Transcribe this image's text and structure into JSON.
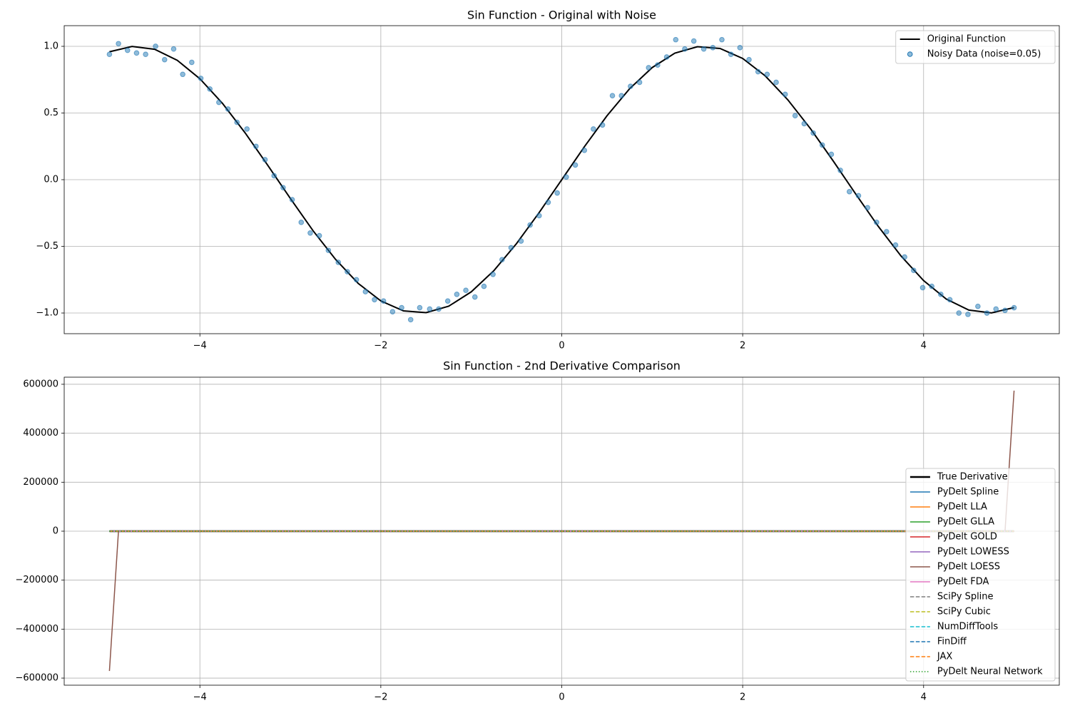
{
  "chart_data": [
    {
      "type": "line",
      "title": "Sin Function - Original with Noise",
      "xlim": [
        -5.5,
        5.5
      ],
      "ylim": [
        -1.155,
        1.155
      ],
      "xticks": [
        {
          "value": -4,
          "label": "−4"
        },
        {
          "value": -2,
          "label": "−2"
        },
        0,
        2,
        4
      ],
      "yticks": [
        {
          "value": -1,
          "label": "−1.0"
        },
        {
          "value": -0.5,
          "label": "−0.5"
        },
        {
          "value": 0,
          "label": "0.0"
        },
        0.5,
        {
          "value": 1,
          "label": "1.0"
        }
      ],
      "grid": true,
      "legend": "upper right",
      "series": [
        {
          "name": "Original Function",
          "type": "line",
          "color": "#000000",
          "linewidth": 2,
          "dash": "solid",
          "x": [
            -5,
            -4.75,
            -4.5,
            -4.25,
            -4,
            -3.75,
            -3.5,
            -3.25,
            -3,
            -2.75,
            -2.5,
            -2.25,
            -2,
            -1.75,
            -1.5,
            -1.25,
            -1,
            -0.75,
            -0.5,
            -0.25,
            0,
            0.25,
            0.5,
            0.75,
            1,
            1.25,
            1.5,
            1.75,
            2,
            2.25,
            2.5,
            2.75,
            3,
            3.25,
            3.5,
            3.75,
            4,
            4.25,
            4.5,
            4.75,
            5
          ],
          "values": [
            0.959,
            0.999,
            0.978,
            0.895,
            0.757,
            0.572,
            0.351,
            0.108,
            -0.141,
            -0.382,
            -0.598,
            -0.778,
            -0.909,
            -0.984,
            -0.997,
            -0.949,
            -0.841,
            -0.682,
            -0.479,
            -0.247,
            0,
            0.247,
            0.479,
            0.682,
            0.841,
            0.949,
            0.997,
            0.984,
            0.909,
            0.778,
            0.598,
            0.382,
            0.141,
            -0.108,
            -0.351,
            -0.572,
            -0.757,
            -0.895,
            -0.978,
            -0.999,
            -0.959
          ]
        },
        {
          "name": "Noisy Data (noise=0.05)",
          "type": "scatter",
          "color": "#1f77b4",
          "x": [
            -5.0,
            -4.9,
            -4.8,
            -4.7,
            -4.6,
            -4.49,
            -4.39,
            -4.29,
            -4.19,
            -4.09,
            -3.99,
            -3.89,
            -3.79,
            -3.69,
            -3.59,
            -3.48,
            -3.38,
            -3.28,
            -3.18,
            -3.08,
            -2.98,
            -2.88,
            -2.78,
            -2.68,
            -2.58,
            -2.47,
            -2.37,
            -2.27,
            -2.17,
            -2.07,
            -1.97,
            -1.87,
            -1.77,
            -1.67,
            -1.57,
            -1.46,
            -1.36,
            -1.26,
            -1.16,
            -1.06,
            -0.96,
            -0.86,
            -0.76,
            -0.66,
            -0.56,
            -0.45,
            -0.35,
            -0.25,
            -0.15,
            -0.05,
            0.05,
            0.15,
            0.25,
            0.35,
            0.45,
            0.56,
            0.66,
            0.76,
            0.86,
            0.96,
            1.06,
            1.16,
            1.26,
            1.36,
            1.46,
            1.57,
            1.67,
            1.77,
            1.87,
            1.97,
            2.07,
            2.17,
            2.27,
            2.37,
            2.47,
            2.58,
            2.68,
            2.78,
            2.88,
            2.98,
            3.08,
            3.18,
            3.28,
            3.38,
            3.48,
            3.59,
            3.69,
            3.79,
            3.89,
            3.99,
            4.09,
            4.19,
            4.29,
            4.39,
            4.49,
            4.6,
            4.7,
            4.8,
            4.9,
            5.0
          ],
          "values": [
            0.94,
            1.02,
            0.97,
            0.95,
            0.94,
            1.0,
            0.9,
            0.98,
            0.79,
            0.88,
            0.76,
            0.68,
            0.58,
            0.53,
            0.43,
            0.38,
            0.25,
            0.15,
            0.03,
            -0.06,
            -0.15,
            -0.32,
            -0.4,
            -0.42,
            -0.53,
            -0.62,
            -0.69,
            -0.75,
            -0.84,
            -0.9,
            -0.91,
            -0.99,
            -0.96,
            -1.05,
            -0.96,
            -0.97,
            -0.97,
            -0.91,
            -0.86,
            -0.83,
            -0.88,
            -0.8,
            -0.71,
            -0.6,
            -0.51,
            -0.46,
            -0.34,
            -0.27,
            -0.17,
            -0.1,
            0.02,
            0.11,
            0.22,
            0.38,
            0.41,
            0.63,
            0.63,
            0.7,
            0.73,
            0.84,
            0.86,
            0.92,
            1.05,
            0.98,
            1.04,
            0.98,
            0.99,
            1.05,
            0.94,
            0.99,
            0.9,
            0.81,
            0.79,
            0.73,
            0.64,
            0.48,
            0.42,
            0.35,
            0.26,
            0.19,
            0.07,
            -0.09,
            -0.12,
            -0.21,
            -0.32,
            -0.39,
            -0.49,
            -0.58,
            -0.68,
            -0.81,
            -0.8,
            -0.86,
            -0.9,
            -1.0,
            -1.01,
            -0.95,
            -1.0,
            -0.97,
            -0.98,
            -0.96
          ]
        }
      ]
    },
    {
      "type": "line",
      "title": "Sin Function - 2nd Derivative Comparison",
      "xlim": [
        -5.5,
        5.5
      ],
      "ylim": [
        -629000,
        629000
      ],
      "xticks": [
        {
          "value": -4,
          "label": "−4"
        },
        {
          "value": -2,
          "label": "−2"
        },
        0,
        2,
        4
      ],
      "yticks": [
        {
          "value": -600000,
          "label": "−600000"
        },
        {
          "value": -400000,
          "label": "−400000"
        },
        {
          "value": -200000,
          "label": "−200000"
        },
        0,
        200000,
        400000,
        600000
      ],
      "grid": true,
      "legend": "lower right",
      "x": [
        -5,
        -4.9,
        4.9,
        5
      ],
      "series": [
        {
          "name": "True Derivative",
          "type": "line",
          "color": "#000000",
          "linewidth": 2.5,
          "dash": "solid",
          "values": [
            -0.959,
            -0.983,
            0.983,
            0.959
          ]
        },
        {
          "name": "PyDelt Spline",
          "type": "line",
          "color": "#1f77b4",
          "linewidth": 1.5,
          "dash": "solid",
          "values": [
            -0.96,
            -0.98,
            0.98,
            0.96
          ]
        },
        {
          "name": "PyDelt LLA",
          "type": "line",
          "color": "#ff7f0e",
          "linewidth": 1.5,
          "dash": "solid",
          "values": [
            -0.96,
            -0.98,
            0.98,
            0.96
          ]
        },
        {
          "name": "PyDelt GLLA",
          "type": "line",
          "color": "#2ca02c",
          "linewidth": 1.5,
          "dash": "solid",
          "values": [
            -0.96,
            -0.98,
            0.98,
            0.96
          ]
        },
        {
          "name": "PyDelt GOLD",
          "type": "line",
          "color": "#d62728",
          "linewidth": 1.5,
          "dash": "solid",
          "values": [
            -0.96,
            -0.98,
            0.98,
            0.96
          ]
        },
        {
          "name": "PyDelt LOWESS",
          "type": "line",
          "color": "#9467bd",
          "linewidth": 1.5,
          "dash": "solid",
          "values": [
            -0.96,
            -0.98,
            0.98,
            0.96
          ]
        },
        {
          "name": "PyDelt LOESS",
          "type": "line",
          "color": "#8c564b",
          "linewidth": 1.5,
          "dash": "solid",
          "values": [
            -571000,
            0,
            0,
            574000
          ]
        },
        {
          "name": "PyDelt FDA",
          "type": "line",
          "color": "#e377c2",
          "linewidth": 1.5,
          "dash": "solid",
          "values": [
            -0.96,
            -0.98,
            0.98,
            0.96
          ]
        },
        {
          "name": "SciPy Spline",
          "type": "line",
          "color": "#7f7f7f",
          "linewidth": 1.5,
          "dash": "dashed",
          "values": [
            -0.96,
            -0.98,
            0.98,
            0.96
          ]
        },
        {
          "name": "SciPy Cubic",
          "type": "line",
          "color": "#bcbd22",
          "linewidth": 1.5,
          "dash": "dashed",
          "values": [
            -0.96,
            -0.98,
            0.98,
            0.96
          ]
        },
        {
          "name": "NumDiffTools",
          "type": "line",
          "color": "#17becf",
          "linewidth": 1.5,
          "dash": "dashed",
          "values": [
            -0.96,
            -0.98,
            0.98,
            0.96
          ]
        },
        {
          "name": "FinDiff",
          "type": "line",
          "color": "#1f77b4",
          "linewidth": 1.5,
          "dash": "dashed",
          "values": [
            -0.96,
            -0.98,
            0.98,
            0.96
          ]
        },
        {
          "name": "JAX",
          "type": "line",
          "color": "#ff7f0e",
          "linewidth": 1.5,
          "dash": "dashed",
          "values": [
            -0.96,
            -0.98,
            0.98,
            0.96
          ]
        },
        {
          "name": "PyDelt Neural Network",
          "type": "line",
          "color": "#2ca02c",
          "linewidth": 1.5,
          "dash": "dotted",
          "values": [
            -0.96,
            -0.98,
            0.98,
            0.96
          ]
        }
      ]
    }
  ]
}
